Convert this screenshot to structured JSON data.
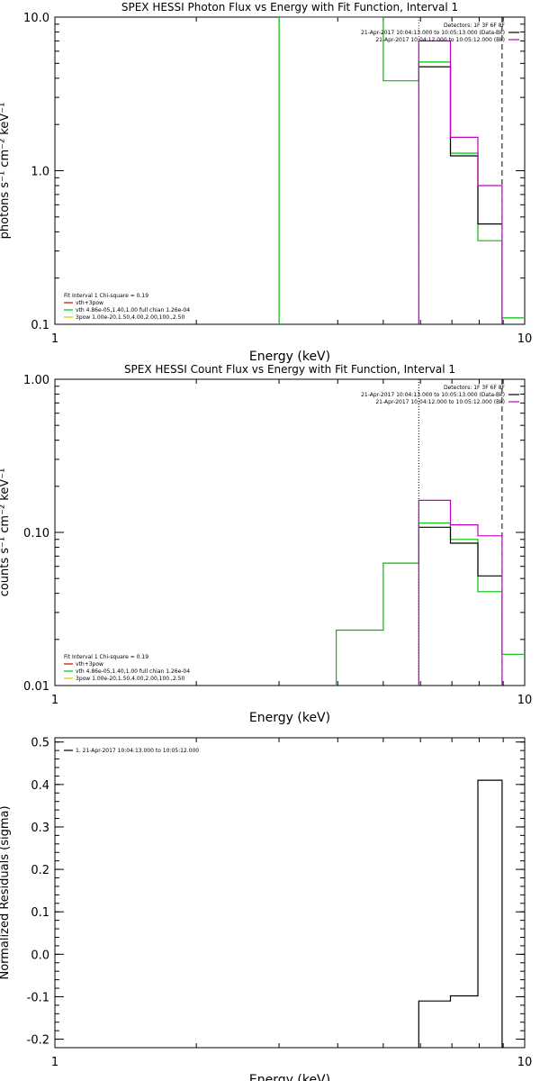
{
  "chart_data": [
    {
      "type": "line",
      "title": "SPEX HESSI Photon Flux vs Energy with Fit Function, Interval 1",
      "xlabel": "Energy (keV)",
      "ylabel": "photons s⁻¹ cm⁻² keV⁻¹",
      "xscale": "log",
      "yscale": "log",
      "xlim": [
        1,
        10
      ],
      "ylim": [
        0.1,
        10
      ],
      "xticks": [
        {
          "v": 1,
          "label": "1"
        },
        {
          "v": 10,
          "label": "10"
        }
      ],
      "yticks": [
        {
          "v": 0.1,
          "label": "0.1"
        },
        {
          "v": 1,
          "label": "1.0"
        },
        {
          "v": 10,
          "label": "10.0"
        }
      ],
      "vlines": [
        {
          "x": 5.95,
          "color": "#c000c0",
          "style": "dotted"
        },
        {
          "x": 8.95,
          "color": "#000000",
          "style": "dashed"
        }
      ],
      "legend_right": [
        {
          "text": "Detectors: 1F 3F 6F 8F",
          "color": ""
        },
        {
          "text": "21-Apr-2017 10:04:13.000 to 10:05:13.000 (Data-Bk)",
          "color": "#000000"
        },
        {
          "text": "21-Apr-2017 10:04:12.000 to 10:05:12.000 (Bk)",
          "color": "#c000c0"
        }
      ],
      "legend_left": [
        {
          "text": "Fit Interval  1    Chi-square = 0.19",
          "color": ""
        },
        {
          "text": "vth+3pow",
          "color": "#d40000"
        },
        {
          "text": "vth 4.86e-05,1.40,1.00   full chian 1.26e-04",
          "color": "#00c000"
        },
        {
          "text": "3pow 1.00e-20,1.50,4.00,2.00,100.,2.50",
          "color": "#e0c000"
        }
      ],
      "series": [
        {
          "color": "#00c000",
          "x": [
            3,
            3,
            5,
            5,
            5.95,
            5.95,
            6.95,
            6.95,
            7.95,
            7.95,
            8.95,
            8.95,
            9.95
          ],
          "y": [
            0.1,
            10,
            10,
            3.85,
            3.85,
            5.1,
            5.1,
            1.3,
            1.3,
            0.35,
            0.35,
            0.11,
            0.11
          ]
        },
        {
          "color": "#000000",
          "x": [
            5.95,
            6.95,
            6.95,
            7.95,
            7.95,
            8.95
          ],
          "y": [
            4.75,
            4.75,
            1.25,
            1.25,
            0.45,
            0.45
          ]
        },
        {
          "color": "#c000c0",
          "x": [
            5.95,
            5.95,
            6.95,
            6.95,
            7.95,
            7.95,
            8.95,
            8.95
          ],
          "y": [
            0.1,
            7,
            7,
            1.65,
            1.65,
            0.8,
            0.8,
            0.1
          ]
        }
      ]
    },
    {
      "type": "line",
      "title": "SPEX HESSI Count Flux vs Energy with Fit Function, Interval 1",
      "xlabel": "Energy (keV)",
      "ylabel": "counts s⁻¹ cm⁻² keV⁻¹",
      "xscale": "log",
      "yscale": "log",
      "xlim": [
        1,
        10
      ],
      "ylim": [
        0.01,
        1
      ],
      "xticks": [
        {
          "v": 1,
          "label": "1"
        },
        {
          "v": 10,
          "label": "10"
        }
      ],
      "yticks": [
        {
          "v": 0.01,
          "label": "0.01"
        },
        {
          "v": 0.1,
          "label": "0.10"
        },
        {
          "v": 1,
          "label": "1.00"
        }
      ],
      "vlines": [
        {
          "x": 5.95,
          "color": "#000000",
          "style": "dotted"
        },
        {
          "x": 8.95,
          "color": "#000000",
          "style": "dashed"
        }
      ],
      "legend_right": [
        {
          "text": "Detectors: 1F 3F 6F 8F",
          "color": ""
        },
        {
          "text": "21-Apr-2017 10:04:13.000 to 10:05:13.000 (Data-Bk)",
          "color": "#000000"
        },
        {
          "text": "21-Apr-2017 10:04:12.000 to 10:05:12.000 (Bk)",
          "color": "#c000c0"
        }
      ],
      "legend_left": [
        {
          "text": "Fit Interval  1    Chi-square = 0.19",
          "color": ""
        },
        {
          "text": "vth+3pow",
          "color": "#d40000"
        },
        {
          "text": "vth 4.86e-05,1.40,1.00   full chian 1.26e-04",
          "color": "#00c000"
        },
        {
          "text": "3pow 1.00e-20,1.50,4.00,2.00,100.,2.50",
          "color": "#e0c000"
        }
      ],
      "series": [
        {
          "color": "#00c000",
          "x": [
            3.97,
            3.97,
            5,
            5,
            5.95,
            5.95,
            6.95,
            6.95,
            7.95,
            7.95,
            8.95,
            8.95,
            9.95
          ],
          "y": [
            0.01,
            0.023,
            0.023,
            0.063,
            0.063,
            0.115,
            0.115,
            0.09,
            0.09,
            0.041,
            0.041,
            0.016,
            0.016
          ]
        },
        {
          "color": "#000000",
          "x": [
            5.95,
            6.95,
            6.95,
            7.95,
            7.95,
            8.95
          ],
          "y": [
            0.108,
            0.108,
            0.085,
            0.085,
            0.052,
            0.052
          ]
        },
        {
          "color": "#c000c0",
          "x": [
            5.95,
            5.95,
            6.95,
            6.95,
            7.95,
            7.95,
            8.95,
            8.95
          ],
          "y": [
            0.01,
            0.162,
            0.162,
            0.112,
            0.112,
            0.095,
            0.095,
            0.01
          ]
        }
      ]
    },
    {
      "type": "line",
      "title": "",
      "xlabel": "Energy (keV)",
      "ylabel": "Normalized Residuals (sigma)",
      "xscale": "log",
      "yscale": "linear",
      "xlim": [
        1,
        10
      ],
      "ylim": [
        -0.22,
        0.51
      ],
      "xticks": [
        {
          "v": 1,
          "label": "1"
        },
        {
          "v": 10,
          "label": "10"
        }
      ],
      "yticks": [
        {
          "v": -0.2,
          "label": "-0.2"
        },
        {
          "v": -0.1,
          "label": "-0.1"
        },
        {
          "v": 0,
          "label": "0.0"
        },
        {
          "v": 0.1,
          "label": "0.1"
        },
        {
          "v": 0.2,
          "label": "0.2"
        },
        {
          "v": 0.3,
          "label": "0.3"
        },
        {
          "v": 0.4,
          "label": "0.4"
        },
        {
          "v": 0.5,
          "label": "0.5"
        }
      ],
      "vlines": [],
      "legend_right": [],
      "legend_left": [
        {
          "text": "1. 21-Apr-2017 10:04:13.000 to 10:05:12.000",
          "color": "#000000"
        }
      ],
      "series": [
        {
          "color": "#000000",
          "x": [
            5.95,
            5.95,
            6.95,
            6.95,
            7.95,
            7.95,
            8.95,
            8.95
          ],
          "y": [
            -0.22,
            -0.11,
            -0.11,
            -0.098,
            -0.098,
            0.41,
            0.41,
            -0.22
          ]
        }
      ]
    }
  ]
}
